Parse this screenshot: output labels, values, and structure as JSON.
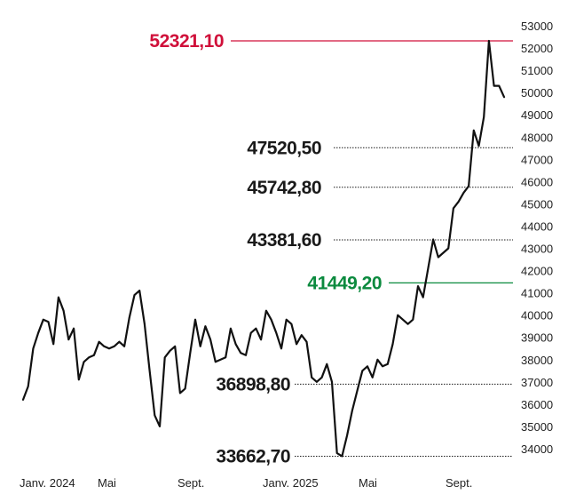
{
  "chart_data": {
    "type": "line",
    "title": "",
    "xlabel": "",
    "ylabel": "",
    "ylim": [
      33500,
      53300
    ],
    "y_ticks": [
      "34000",
      "35000",
      "36000",
      "37000",
      "38000",
      "39000",
      "40000",
      "41000",
      "42000",
      "43000",
      "44000",
      "45000",
      "46000",
      "47000",
      "48000",
      "49000",
      "50000",
      "51000",
      "52000",
      "53000"
    ],
    "y_tick_values": [
      34000,
      35000,
      36000,
      37000,
      38000,
      39000,
      40000,
      41000,
      42000,
      43000,
      44000,
      45000,
      46000,
      47000,
      48000,
      49000,
      50000,
      51000,
      52000,
      53000
    ],
    "x_ticks": [
      "Janv. 2024",
      "Mai",
      "Sept.",
      "Janv. 2025",
      "Mai",
      "Sept."
    ],
    "x_tick_positions": [
      0,
      17,
      35,
      52,
      70,
      88
    ],
    "grid": false,
    "line_color": "#111111",
    "series": [
      {
        "values": [
          36200,
          36800,
          38500,
          39200,
          39800,
          39700,
          38700,
          40800,
          40200,
          38900,
          39400,
          37100,
          37900,
          38100,
          38200,
          38800,
          38600,
          38500,
          38600,
          38800,
          38600,
          39900,
          40900,
          41100,
          39600,
          37500,
          35500,
          35000,
          38100,
          38400,
          38600,
          36500,
          36700,
          38300,
          39800,
          38600,
          39500,
          38900,
          37900,
          38000,
          38100,
          39400,
          38700,
          38300,
          38200,
          39200,
          39400,
          38900,
          40200,
          39800,
          39200,
          38500,
          39800,
          39600,
          38700,
          39100,
          38800,
          37200,
          37000,
          37200,
          37800,
          37000,
          33800,
          33662.7,
          34600,
          35700,
          36600,
          37500,
          37700,
          37200,
          38000,
          37700,
          37800,
          38700,
          40000,
          39800,
          39600,
          39800,
          41300,
          40800,
          42100,
          43400,
          42600,
          42800,
          43000,
          44800,
          45100,
          45500,
          45800,
          48300,
          47600,
          48900,
          52321.1,
          50300,
          50300,
          49800
        ]
      }
    ],
    "levels": [
      {
        "value": 52321.1,
        "label": "52321,10",
        "color": "#d0103a",
        "style": "solid"
      },
      {
        "value": 47520.5,
        "label": "47520,50",
        "color": "#1a1a1a",
        "style": "dotted"
      },
      {
        "value": 45742.8,
        "label": "45742,80",
        "color": "#1a1a1a",
        "style": "dotted"
      },
      {
        "value": 43381.6,
        "label": "43381,60",
        "color": "#1a1a1a",
        "style": "dotted"
      },
      {
        "value": 41449.2,
        "label": "41449,20",
        "color": "#0b8a3e",
        "style": "solid"
      },
      {
        "value": 36898.8,
        "label": "36898,80",
        "color": "#1a1a1a",
        "style": "dotted"
      },
      {
        "value": 33662.7,
        "label": "33662,70",
        "color": "#1a1a1a",
        "style": "dotted"
      }
    ]
  }
}
